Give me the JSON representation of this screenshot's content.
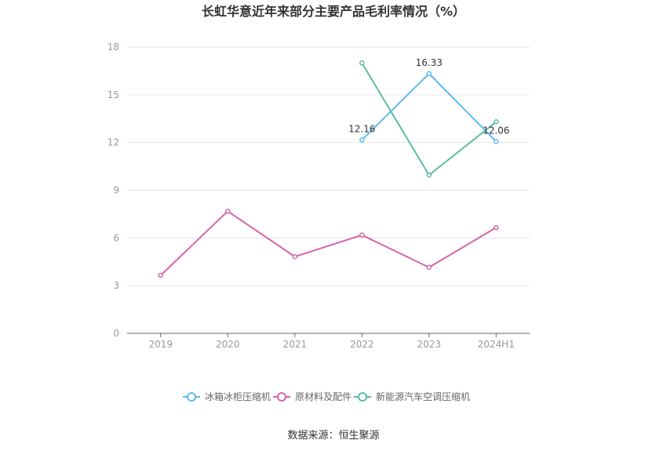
{
  "chart_data": {
    "type": "line",
    "title": "长虹华意近年来部分主要产品毛利率情况（%）",
    "categories": [
      "2019",
      "2020",
      "2021",
      "2022",
      "2023",
      "2024H1"
    ],
    "ylim": [
      0,
      18
    ],
    "yticks": [
      0,
      3,
      6,
      9,
      12,
      15,
      18
    ],
    "grid": true,
    "legend_position": "bottom",
    "series": [
      {
        "name": "冰箱冰柜压缩机",
        "color": "#5bbcef",
        "values": [
          null,
          null,
          null,
          12.16,
          16.33,
          12.06
        ],
        "labels": [
          null,
          null,
          null,
          "12.16",
          "16.33",
          "12.06"
        ]
      },
      {
        "name": "原材料及配件",
        "color": "#d565ad",
        "values": [
          3.65,
          7.68,
          4.82,
          6.18,
          4.15,
          6.65
        ],
        "labels": [
          null,
          null,
          null,
          null,
          null,
          null
        ]
      },
      {
        "name": "新能源汽车空调压缩机",
        "color": "#5bbca4",
        "values": [
          null,
          null,
          null,
          17.0,
          9.95,
          13.3
        ],
        "labels": [
          null,
          null,
          null,
          null,
          null,
          null
        ]
      }
    ],
    "source": "数据来源：恒生聚源"
  }
}
